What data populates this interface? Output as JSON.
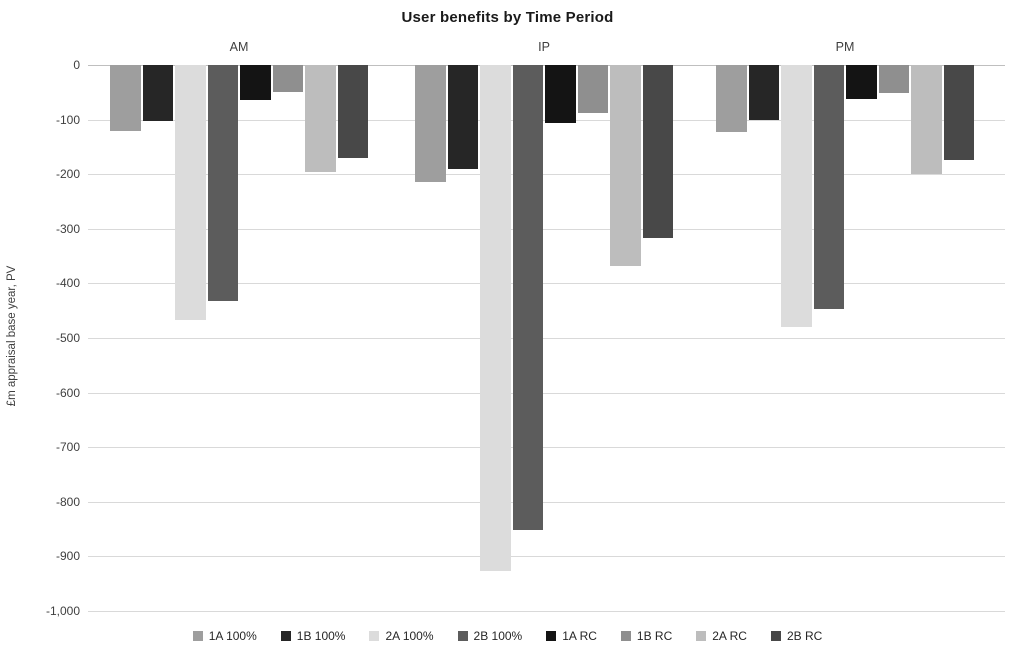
{
  "title": "User benefits by Time Period",
  "chart_data": {
    "type": "bar",
    "title": "User benefits by Time Period",
    "categories": [
      "AM",
      "IP",
      "PM"
    ],
    "series": [
      {
        "name": "1A 100%",
        "color": "#9e9e9e",
        "values": [
          -120,
          -214,
          -122
        ]
      },
      {
        "name": "1B 100%",
        "color": "#262626",
        "values": [
          -103,
          -190,
          -100
        ]
      },
      {
        "name": "2A 100%",
        "color": "#dcdcdc",
        "values": [
          -467,
          -927,
          -479
        ]
      },
      {
        "name": "2B 100%",
        "color": "#5c5c5c",
        "values": [
          -433,
          -851,
          -446
        ]
      },
      {
        "name": "1A RC",
        "color": "#141414",
        "values": [
          -65,
          -107,
          -62
        ]
      },
      {
        "name": "1B RC",
        "color": "#8f8f8f",
        "values": [
          -50,
          -88,
          -52
        ]
      },
      {
        "name": "2A RC",
        "color": "#bdbdbd",
        "values": [
          -196,
          -368,
          -199
        ]
      },
      {
        "name": "2B RC",
        "color": "#484848",
        "values": [
          -171,
          -317,
          -174
        ]
      }
    ],
    "xlabel": "",
    "ylabel": "£m appraisal base year, PV",
    "ylim": [
      -1000,
      0
    ],
    "yticks": [
      "0",
      "-100",
      "-200",
      "-300",
      "-400",
      "-500",
      "-600",
      "-700",
      "-800",
      "-900",
      "-1,000"
    ],
    "ytick_values": [
      0,
      -100,
      -200,
      -300,
      -400,
      -500,
      -600,
      -700,
      -800,
      -900,
      -1000
    ],
    "grid": true,
    "legend_position": "bottom",
    "colors": {
      "gridline": "#d9d9d9",
      "zero_line": "#bfbfbf",
      "background": "#ffffff"
    }
  }
}
